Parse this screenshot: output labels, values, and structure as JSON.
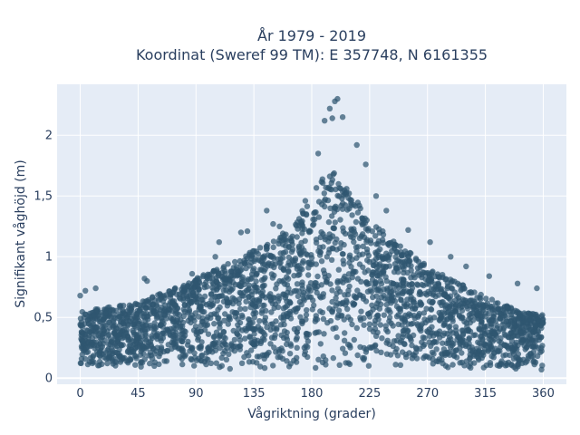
{
  "chart_data": {
    "type": "scatter",
    "title": [
      "År 1979 - 2019",
      "Koordinat (Sweref 99 TM): E 357748, N 6161355"
    ],
    "xlabel": "Vågriktning (grader)",
    "ylabel": "Signifikant våghöjd (m)",
    "xlim": [
      -18,
      378
    ],
    "ylim": [
      -0.05,
      2.42
    ],
    "x_ticks": [
      0,
      45,
      90,
      135,
      180,
      225,
      270,
      315,
      360
    ],
    "x_tick_labels": [
      "0",
      "45",
      "90",
      "135",
      "180",
      "225",
      "270",
      "315",
      "360"
    ],
    "y_ticks": [
      0,
      0.5,
      1,
      1.5,
      2
    ],
    "y_tick_labels": [
      "0",
      "0,5",
      "1",
      "1,5",
      "2"
    ],
    "grid": true,
    "marker_color": "#2f5670",
    "background_color": "#e5ecf6",
    "upper_envelope": {
      "direction": [
        0,
        45,
        90,
        135,
        165,
        190,
        200,
        225,
        270,
        315,
        340,
        360
      ],
      "height": [
        0.55,
        0.62,
        0.82,
        1.05,
        1.25,
        1.68,
        1.7,
        1.3,
        0.92,
        0.67,
        0.56,
        0.52
      ]
    },
    "lower_envelope": 0.03,
    "notable_points": {
      "direction": [
        0,
        4,
        12,
        50,
        52,
        87,
        105,
        108,
        125,
        130,
        145,
        150,
        155,
        175,
        185,
        190,
        194,
        196,
        198,
        200,
        204,
        215,
        222,
        230,
        238,
        255,
        272,
        288,
        300,
        318,
        340,
        355
      ],
      "height": [
        0.68,
        0.72,
        0.74,
        0.82,
        0.8,
        0.86,
        1.0,
        1.12,
        1.2,
        1.21,
        1.38,
        1.27,
        1.25,
        1.46,
        1.85,
        2.12,
        2.22,
        2.14,
        2.28,
        2.3,
        2.15,
        1.92,
        1.76,
        1.5,
        1.38,
        1.22,
        1.12,
        1.0,
        0.92,
        0.84,
        0.78,
        0.74
      ]
    }
  }
}
